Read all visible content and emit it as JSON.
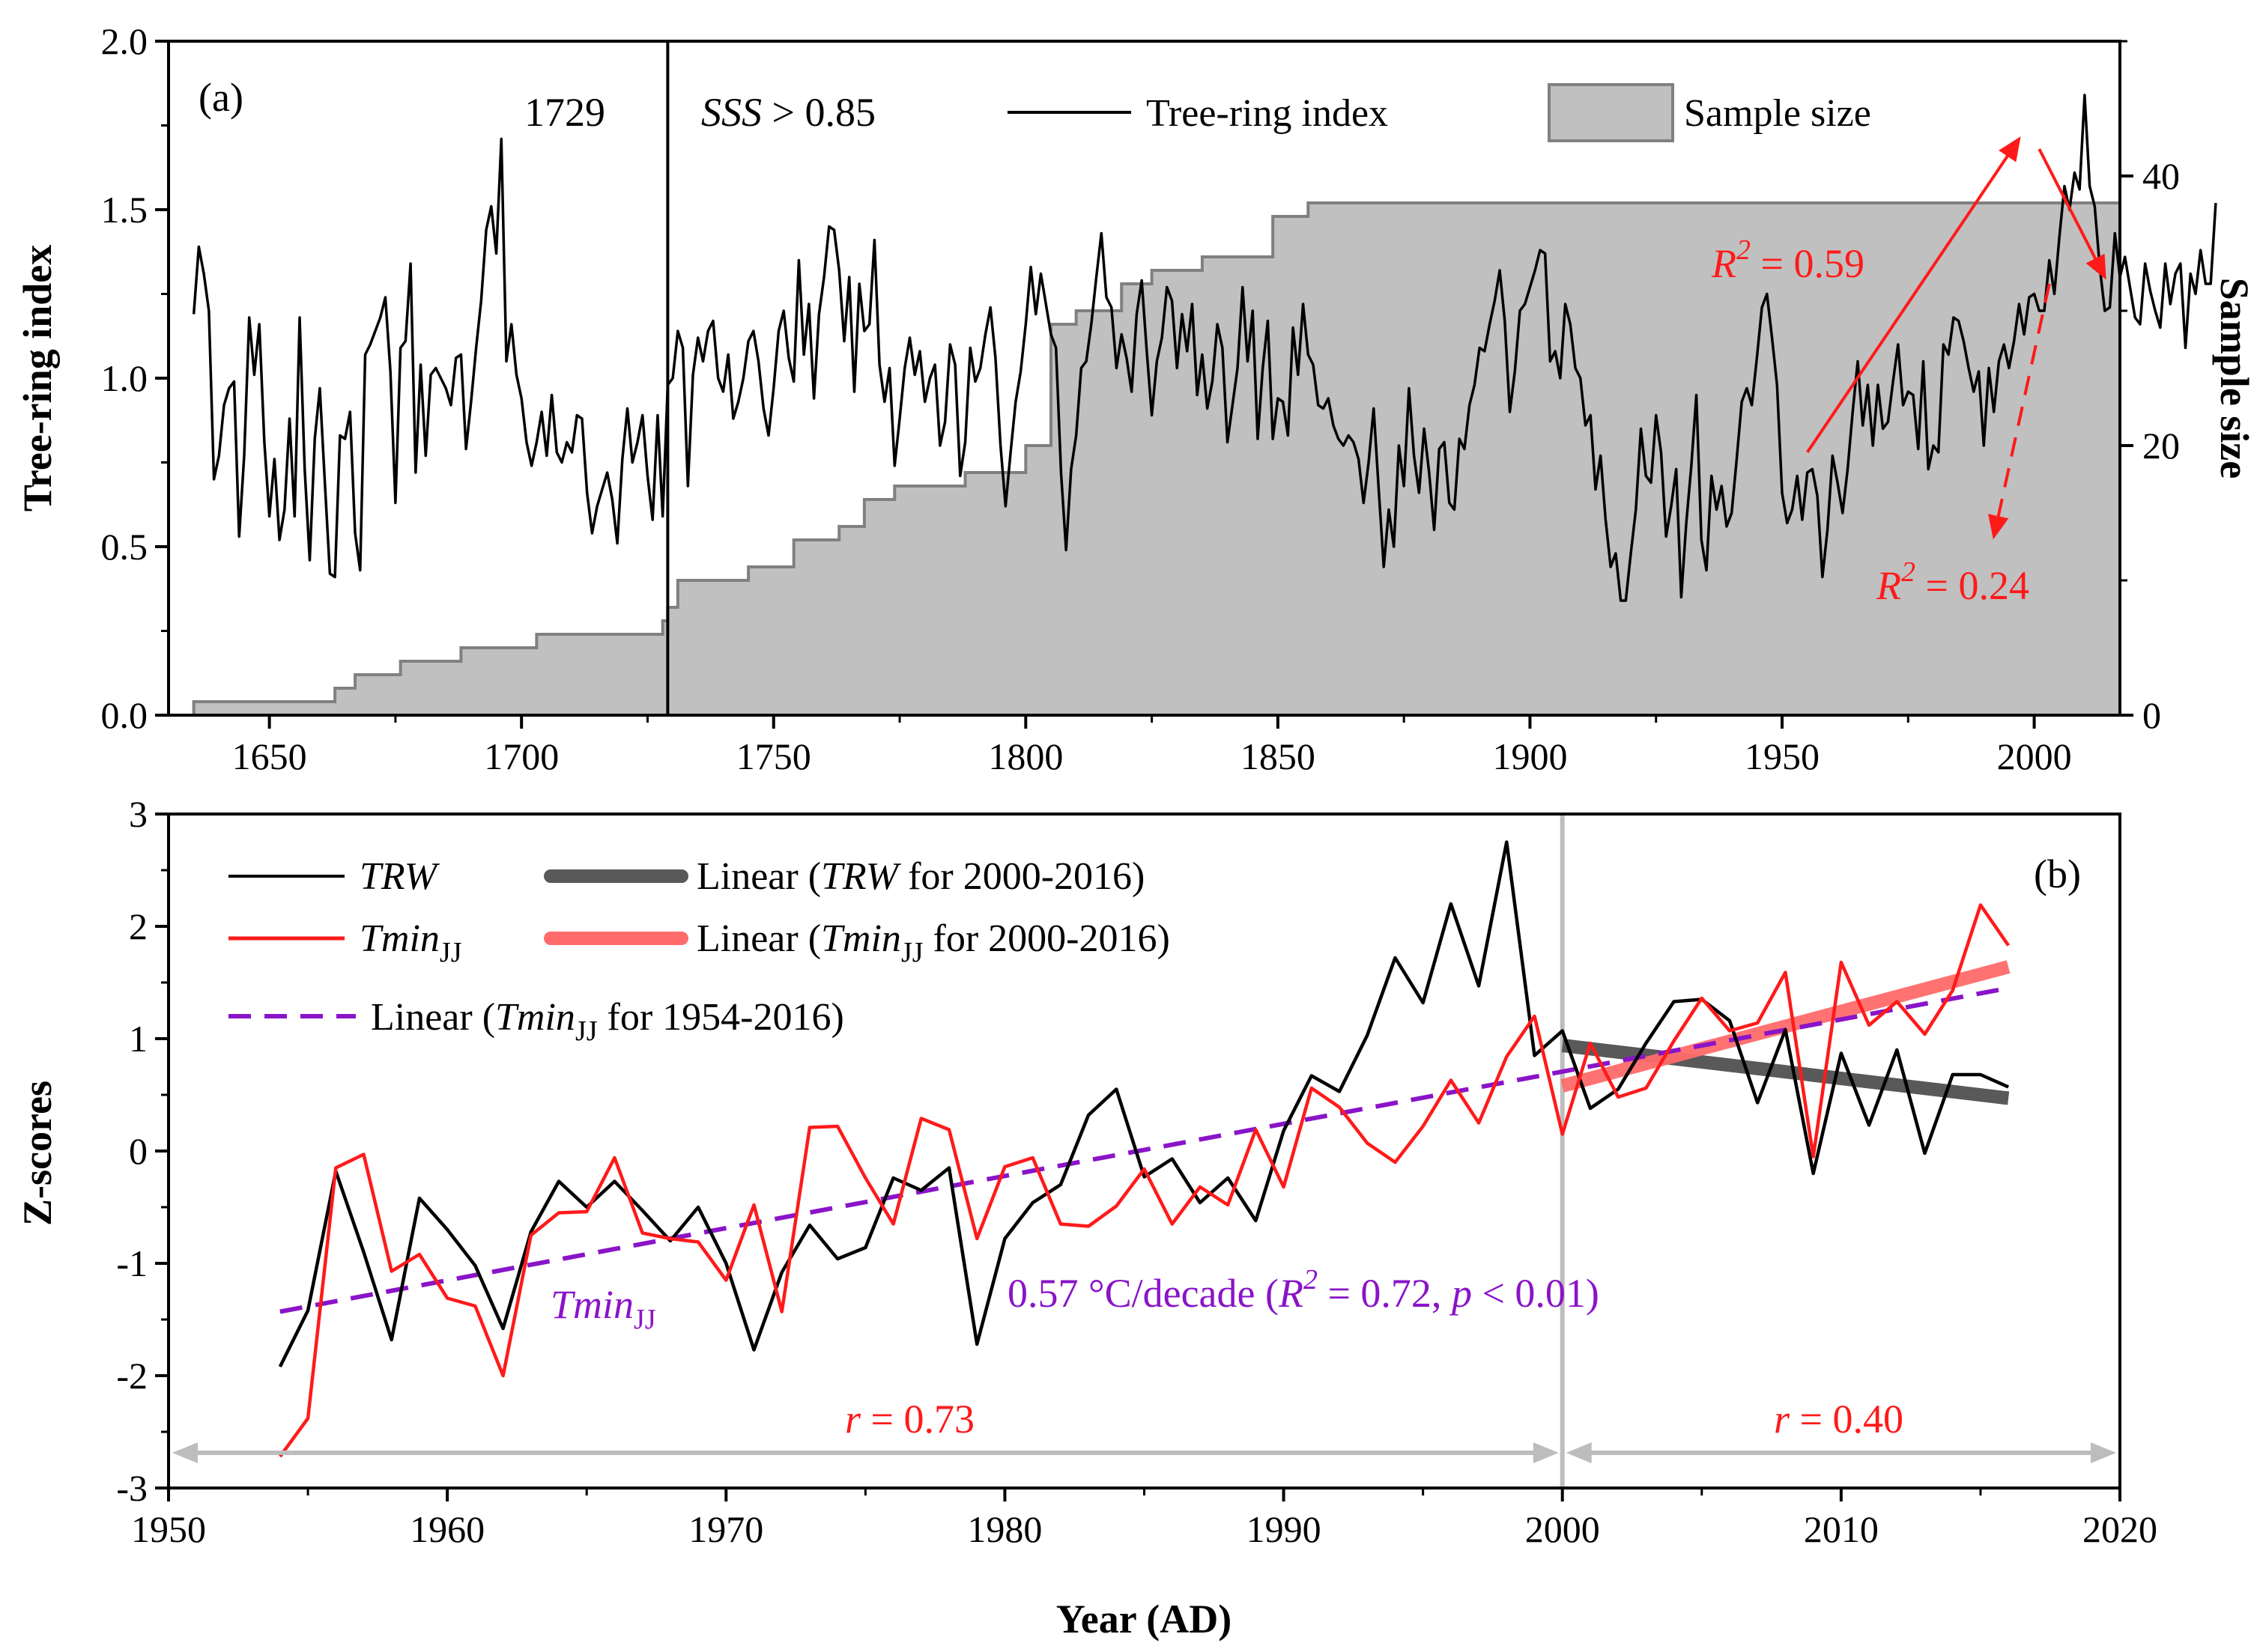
{
  "colors": {
    "black": "#000000",
    "red": "#ff1a1a",
    "gray_fill": "#c0c0c0",
    "gray_line": "#808080",
    "purple": "#8a14c8",
    "light_gray": "#bdbdbd",
    "dark_gray": "#595959",
    "salmon": "#ff6b6b"
  },
  "chart_data": [
    {
      "type": "line",
      "panel_label": "(a)",
      "xlabel": "",
      "ylabel": "Tree-ring index",
      "ylabel_right": "Sample size",
      "xlim": [
        1630,
        2017
      ],
      "ylim": [
        0,
        2.0
      ],
      "ylim_right": [
        0,
        50
      ],
      "x_ticks": [
        1650,
        1700,
        1750,
        1800,
        1850,
        1900,
        1950,
        2000
      ],
      "y_ticks": [
        "0.0",
        "0.5",
        "1.0",
        "1.5",
        "2.0"
      ],
      "y_ticks_right": [
        0,
        20,
        40
      ],
      "sss_year": 1729,
      "sss_year_label": "1729",
      "sss_label_italic": "SSS",
      "sss_label_rest": " > 0.85",
      "legend": [
        "Tree-ring index",
        "Sample size"
      ],
      "start_year": 1635,
      "tree_ring_index": [
        1.19,
        1.39,
        1.31,
        1.2,
        0.7,
        0.77,
        0.92,
        0.97,
        0.99,
        0.53,
        0.77,
        1.18,
        1.01,
        1.16,
        0.81,
        0.59,
        0.76,
        0.52,
        0.61,
        0.88,
        0.59,
        1.18,
        0.73,
        0.46,
        0.82,
        0.97,
        0.69,
        0.42,
        0.41,
        0.83,
        0.82,
        0.9,
        0.54,
        0.43,
        1.07,
        1.1,
        1.14,
        1.18,
        1.24,
        1.02,
        0.63,
        1.09,
        1.11,
        1.34,
        0.72,
        1.04,
        0.77,
        1.01,
        1.03,
        1.0,
        0.97,
        0.92,
        1.06,
        1.07,
        0.79,
        0.93,
        1.09,
        1.23,
        1.44,
        1.51,
        1.37,
        1.71,
        1.05,
        1.16,
        1.01,
        0.94,
        0.81,
        0.74,
        0.81,
        0.9,
        0.77,
        0.95,
        0.78,
        0.75,
        0.81,
        0.78,
        0.89,
        0.88,
        0.66,
        0.54,
        0.62,
        0.67,
        0.72,
        0.64,
        0.51,
        0.76,
        0.91,
        0.75,
        0.81,
        0.89,
        0.71,
        0.58,
        0.89,
        0.59,
        0.98,
        1.0,
        1.14,
        1.09,
        0.68,
        1.01,
        1.12,
        1.05,
        1.14,
        1.17,
        1.0,
        0.96,
        1.07,
        0.88,
        0.93,
        1.0,
        1.11,
        1.14,
        1.05,
        0.91,
        0.83,
        0.97,
        1.14,
        1.2,
        1.06,
        0.99,
        1.35,
        1.07,
        1.22,
        0.94,
        1.19,
        1.3,
        1.45,
        1.44,
        1.32,
        1.11,
        1.3,
        0.96,
        1.28,
        1.14,
        1.16,
        1.41,
        1.04,
        0.93,
        1.03,
        0.74,
        0.88,
        1.03,
        1.12,
        1.01,
        1.08,
        0.93,
        1.0,
        1.04,
        0.8,
        0.87,
        1.1,
        1.04,
        0.71,
        0.81,
        1.09,
        0.99,
        1.03,
        1.13,
        1.21,
        1.06,
        0.8,
        0.62,
        0.78,
        0.93,
        1.02,
        1.16,
        1.33,
        1.19,
        1.31,
        1.22,
        1.13,
        1.09,
        0.72,
        0.49,
        0.73,
        0.83,
        1.03,
        1.05,
        1.16,
        1.3,
        1.43,
        1.24,
        1.21,
        1.03,
        1.13,
        1.06,
        0.96,
        1.19,
        1.29,
        1.08,
        0.89,
        1.05,
        1.12,
        1.27,
        1.23,
        1.03,
        1.19,
        1.08,
        1.22,
        0.95,
        1.07,
        0.91,
        0.99,
        1.16,
        1.09,
        0.81,
        0.92,
        1.03,
        1.27,
        1.05,
        1.2,
        0.82,
        1.03,
        1.17,
        0.82,
        0.94,
        0.93,
        0.83,
        1.15,
        1.01,
        1.22,
        1.07,
        1.04,
        0.92,
        0.91,
        0.94,
        0.86,
        0.82,
        0.8,
        0.83,
        0.81,
        0.76,
        0.63,
        0.75,
        0.91,
        0.67,
        0.44,
        0.61,
        0.5,
        0.8,
        0.68,
        0.97,
        0.77,
        0.66,
        0.85,
        0.72,
        0.55,
        0.79,
        0.81,
        0.63,
        0.61,
        0.82,
        0.79,
        0.92,
        0.98,
        1.09,
        1.08,
        1.16,
        1.23,
        1.32,
        1.17,
        0.9,
        1.02,
        1.2,
        1.22,
        1.27,
        1.32,
        1.38,
        1.37,
        1.05,
        1.08,
        1.0,
        1.22,
        1.16,
        1.03,
        1.0,
        0.86,
        0.89,
        0.67,
        0.77,
        0.58,
        0.44,
        0.48,
        0.34,
        0.34,
        0.48,
        0.61,
        0.85,
        0.71,
        0.69,
        0.89,
        0.78,
        0.53,
        0.62,
        0.73,
        0.35,
        0.57,
        0.74,
        0.95,
        0.52,
        0.43,
        0.71,
        0.61,
        0.68,
        0.56,
        0.6,
        0.76,
        0.93,
        0.97,
        0.92,
        1.06,
        1.21,
        1.25,
        1.12,
        0.98,
        0.66,
        0.57,
        0.61,
        0.71,
        0.58,
        0.72,
        0.73,
        0.65,
        0.41,
        0.55,
        0.77,
        0.69,
        0.6,
        0.73,
        0.9,
        1.05,
        0.86,
        0.98,
        0.8,
        0.98,
        0.85,
        0.87,
        0.99,
        1.1,
        0.92,
        0.96,
        0.95,
        0.79,
        1.05,
        0.73,
        0.8,
        0.78,
        1.1,
        1.07,
        1.18,
        1.17,
        1.11,
        1.03,
        0.96,
        1.02,
        0.8,
        1.03,
        0.9,
        1.05,
        1.1,
        1.03,
        1.11,
        1.22,
        1.13,
        1.24,
        1.25,
        1.2,
        1.2,
        1.35,
        1.25,
        1.42,
        1.57,
        1.5,
        1.61,
        1.56,
        1.84,
        1.57,
        1.51,
        1.33,
        1.2,
        1.21,
        1.43,
        1.3,
        1.36,
        1.27,
        1.18,
        1.16,
        1.34,
        1.26,
        1.2,
        1.15,
        1.34,
        1.22,
        1.31,
        1.34,
        1.09,
        1.31,
        1.25,
        1.38,
        1.28,
        1.28,
        1.52
      ],
      "sample_size_steps": [
        [
          1635,
          1
        ],
        [
          1663,
          2
        ],
        [
          1667,
          3
        ],
        [
          1676,
          4
        ],
        [
          1688,
          5
        ],
        [
          1703,
          6
        ],
        [
          1728,
          7
        ],
        [
          1729,
          8
        ],
        [
          1731,
          10
        ],
        [
          1745,
          11
        ],
        [
          1754,
          13
        ],
        [
          1763,
          14
        ],
        [
          1768,
          16
        ],
        [
          1774,
          17
        ],
        [
          1788,
          18
        ],
        [
          1800,
          20
        ],
        [
          1805,
          29
        ],
        [
          1810,
          30
        ],
        [
          1819,
          32
        ],
        [
          1825,
          33
        ],
        [
          1835,
          34
        ],
        [
          1849,
          37
        ],
        [
          1856,
          38
        ],
        [
          2017,
          38
        ]
      ],
      "annotations": [
        {
          "label_prefix": "R",
          "label_sup": "2",
          "label_rest": " = 0.59",
          "x": 1970,
          "y": 1.35,
          "arrow_from": [
            1955,
            0.78
          ],
          "arrow_to": [
            1997,
            1.71
          ]
        },
        {
          "label_prefix": "R",
          "label_sup": "2",
          "label_rest": " = 0.24",
          "x": 1962,
          "y": 0.35,
          "arrow_from": [
            2003,
            1.28
          ],
          "arrow_to": [
            1992,
            0.53
          ]
        },
        {
          "arrow_from": [
            2001,
            1.68
          ],
          "arrow_to": [
            2014,
            1.3
          ]
        }
      ]
    },
    {
      "type": "line",
      "panel_label": "(b)",
      "xlabel": "Year (AD)",
      "ylabel": "Z-scores",
      "xlim": [
        1950,
        2020
      ],
      "ylim": [
        -3,
        3
      ],
      "x_ticks": [
        1950,
        1960,
        1970,
        1980,
        1990,
        2000,
        2010,
        2020
      ],
      "y_ticks": [
        "-3",
        "-2",
        "-1",
        "0",
        "1",
        "2",
        "3"
      ],
      "years": [
        1954,
        1955,
        1956,
        1957,
        1958,
        1959,
        1960,
        1961,
        1962,
        1963,
        1964,
        1965,
        1966,
        1967,
        1968,
        1969,
        1970,
        1971,
        1972,
        1973,
        1974,
        1975,
        1976,
        1977,
        1978,
        1979,
        1980,
        1981,
        1982,
        1983,
        1984,
        1985,
        1986,
        1987,
        1988,
        1989,
        1990,
        1991,
        1992,
        1993,
        1994,
        1995,
        1996,
        1997,
        1998,
        1999,
        2000,
        2001,
        2002,
        2003,
        2004,
        2005,
        2006,
        2007,
        2008,
        2009,
        2010,
        2011,
        2012,
        2013,
        2014,
        2015,
        2016
      ],
      "series": [
        {
          "name": "TRW",
          "color": "#000000",
          "values": [
            -1.92,
            -1.42,
            -0.18,
            -0.9,
            -1.68,
            -0.42,
            -0.7,
            -1.02,
            -1.58,
            -0.72,
            -0.27,
            -0.5,
            -0.27,
            -0.53,
            -0.8,
            -0.5,
            -1.0,
            -1.77,
            -1.08,
            -0.66,
            -0.96,
            -0.86,
            -0.24,
            -0.35,
            -0.15,
            -1.72,
            -0.78,
            -0.46,
            -0.3,
            0.32,
            0.55,
            -0.23,
            -0.07,
            -0.46,
            -0.24,
            -0.62,
            0.18,
            0.67,
            0.53,
            1.03,
            1.72,
            1.32,
            2.2,
            1.47,
            2.75,
            0.85,
            1.07,
            0.38,
            0.55,
            0.96,
            1.33,
            1.35,
            1.16,
            0.43,
            1.08,
            -0.2,
            0.87,
            0.23,
            0.9,
            -0.02,
            0.68,
            0.68,
            0.57
          ]
        },
        {
          "name": "TminJJ",
          "color": "#ff1a1a",
          "values": [
            -2.72,
            -2.38,
            -0.15,
            -0.03,
            -1.07,
            -0.92,
            -1.31,
            -1.38,
            -2.0,
            -0.75,
            -0.55,
            -0.54,
            -0.06,
            -0.73,
            -0.78,
            -0.81,
            -1.15,
            -0.48,
            -1.43,
            0.21,
            0.22,
            -0.24,
            -0.65,
            0.29,
            0.19,
            -0.78,
            -0.14,
            -0.06,
            -0.65,
            -0.67,
            -0.49,
            -0.16,
            -0.65,
            -0.32,
            -0.48,
            0.19,
            -0.32,
            0.56,
            0.39,
            0.07,
            -0.1,
            0.22,
            0.63,
            0.25,
            0.84,
            1.2,
            0.15,
            0.96,
            0.48,
            0.56,
            0.98,
            1.36,
            1.07,
            1.14,
            1.59,
            -0.05,
            1.68,
            1.12,
            1.33,
            1.04,
            1.43,
            2.19,
            1.83
          ]
        }
      ],
      "trend_lines": [
        {
          "name": "Linear (TRW for 2000-2016)",
          "color": "#595959",
          "x": [
            2000,
            2016
          ],
          "y": [
            0.94,
            0.47
          ]
        },
        {
          "name": "Linear (TminJJ for 2000-2016)",
          "color": "#ff6b6b",
          "x": [
            2000,
            2016
          ],
          "y": [
            0.58,
            1.64
          ]
        },
        {
          "name": "Linear (TminJJ for 1954-2016)",
          "color": "#8a14c8",
          "x": [
            1954,
            2016
          ],
          "y": [
            -1.43,
            1.45
          ]
        }
      ],
      "vline_x": 2000,
      "legend": [
        {
          "prefix": "",
          "italic": "TRW",
          "sub": "",
          "suffix": ""
        },
        {
          "prefix": "",
          "italic": "Tmin",
          "sub": "JJ",
          "suffix": ""
        },
        {
          "prefix": "Linear (",
          "italic": "Tmin",
          "sub": "JJ",
          "suffix": " for 1954-2016)"
        },
        {
          "prefix": "Linear (",
          "italic": "TRW",
          "sub": "",
          "suffix": " for 2000-2016)"
        },
        {
          "prefix": "Linear (",
          "italic": "Tmin",
          "sub": "JJ",
          "suffix": " for 2000-2016)"
        }
      ],
      "annotations": {
        "tmin_label": {
          "italic": "Tmin",
          "sub": "JJ"
        },
        "slope_label": {
          "pre": "0.57 °C/decade (",
          "r": "R",
          "sup": "2",
          "mid": " = 0.72, ",
          "p": "p",
          "end": " < 0.01)"
        },
        "r_left": {
          "italic": "r",
          "rest": " = 0.73"
        },
        "r_right": {
          "italic": "r",
          "rest": " = 0.40"
        }
      }
    }
  ]
}
